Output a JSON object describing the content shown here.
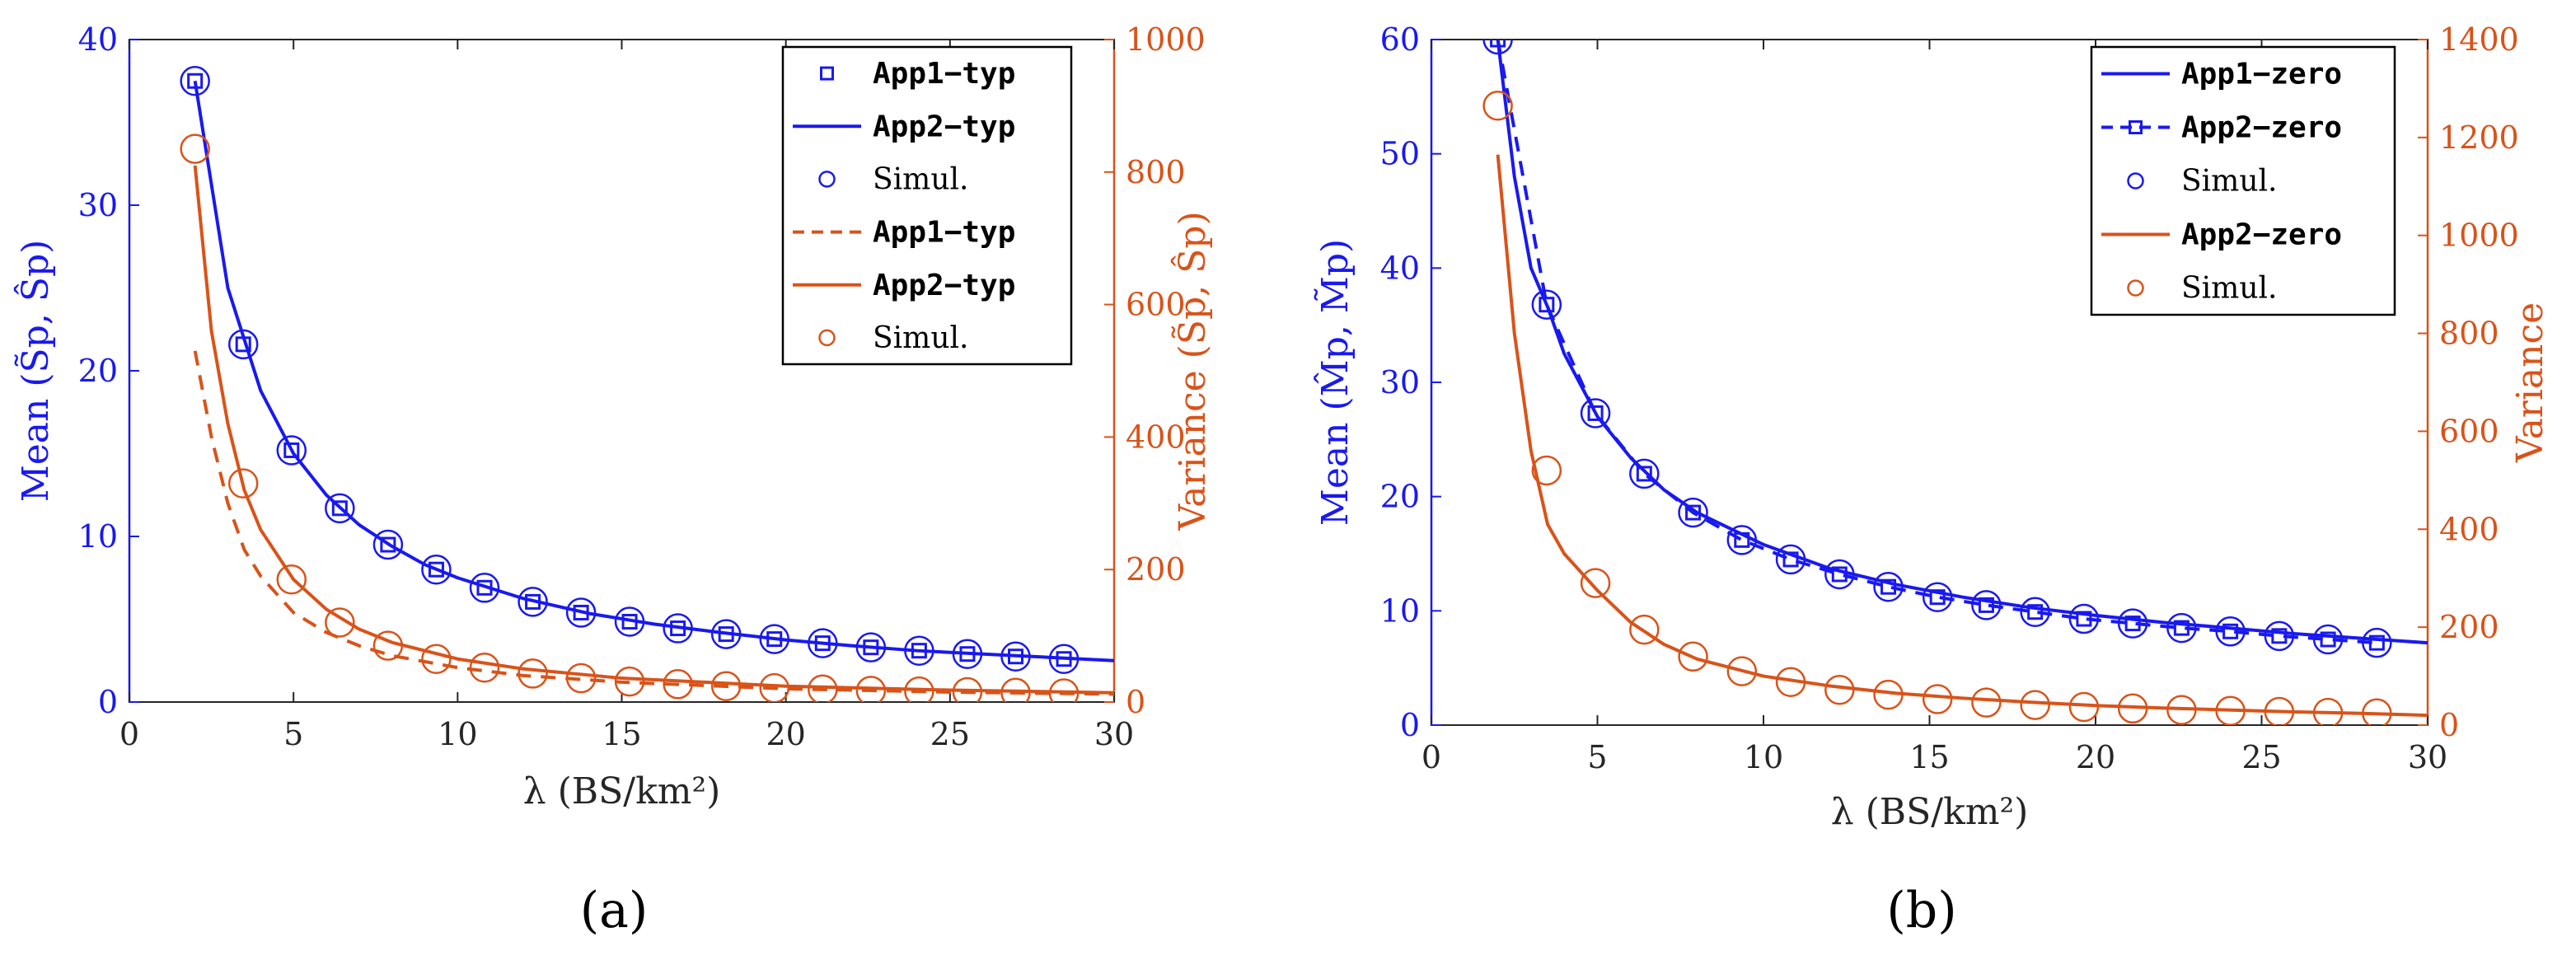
{
  "colors": {
    "blue": "#1919f0",
    "orange": "#d95319",
    "axis": "#262626"
  },
  "chart_data": [
    {
      "type": "line",
      "panel_label": "(a)",
      "xlabel": "λ (BS/km²)",
      "ylabel_left": "Mean (S̃p, Ŝp)",
      "ylabel_right": "Variance (S̃p, Ŝp)",
      "xlim": [
        0,
        30
      ],
      "ylim_left": [
        0,
        40
      ],
      "ylim_right": [
        0,
        1000
      ],
      "xticks": [
        "0",
        "5",
        "10",
        "15",
        "20",
        "25",
        "30"
      ],
      "yticks_left": [
        "0",
        "10",
        "20",
        "30",
        "40"
      ],
      "yticks_right": [
        "0",
        "200",
        "400",
        "600",
        "800",
        "1000"
      ],
      "legend": [
        {
          "label": "App1−typ",
          "kind": "square",
          "color": "blue"
        },
        {
          "label": "App2−typ",
          "kind": "solid",
          "color": "blue"
        },
        {
          "label": "Simul.",
          "kind": "circle",
          "color": "blue"
        },
        {
          "label": "App1−typ",
          "kind": "dashed",
          "color": "orange"
        },
        {
          "label": "App2−typ",
          "kind": "solid",
          "color": "orange"
        },
        {
          "label": "Simul.",
          "kind": "circle",
          "color": "orange"
        }
      ],
      "series": [
        {
          "name": "App1−typ (mean)",
          "axis": "left",
          "color": "blue",
          "style": "square",
          "x": [
            2.0,
            3.47,
            4.94,
            6.41,
            7.88,
            9.35,
            10.82,
            12.29,
            13.76,
            15.24,
            16.71,
            18.18,
            19.65,
            21.12,
            22.59,
            24.06,
            25.53,
            27.0,
            28.47
          ],
          "y": [
            37.5,
            21.6,
            15.2,
            11.7,
            9.5,
            8.0,
            6.9,
            6.05,
            5.4,
            4.85,
            4.45,
            4.1,
            3.8,
            3.55,
            3.3,
            3.1,
            2.9,
            2.75,
            2.6
          ]
        },
        {
          "name": "App2−typ (mean)",
          "axis": "left",
          "color": "blue",
          "style": "solid",
          "x": [
            2,
            3,
            4,
            5,
            6,
            7,
            8,
            9,
            10,
            12,
            14,
            16,
            18,
            20,
            22,
            24,
            26,
            28,
            30
          ],
          "y": [
            37.5,
            25.0,
            18.8,
            15.0,
            12.5,
            10.7,
            9.4,
            8.3,
            7.5,
            6.25,
            5.35,
            4.7,
            4.2,
            3.75,
            3.4,
            3.1,
            2.9,
            2.7,
            2.5
          ]
        },
        {
          "name": "Simul. (mean)",
          "axis": "left",
          "color": "blue",
          "style": "circle",
          "x": [
            2.0,
            3.47,
            4.94,
            6.41,
            7.88,
            9.35,
            10.82,
            12.29,
            13.76,
            15.24,
            16.71,
            18.18,
            19.65,
            21.12,
            22.59,
            24.06,
            25.53,
            27.0,
            28.47
          ],
          "y": [
            37.5,
            21.6,
            15.2,
            11.7,
            9.5,
            8.0,
            6.9,
            6.05,
            5.4,
            4.85,
            4.45,
            4.1,
            3.8,
            3.55,
            3.3,
            3.1,
            2.9,
            2.75,
            2.6
          ]
        },
        {
          "name": "App1−typ (variance)",
          "axis": "right",
          "color": "orange",
          "style": "dashed",
          "x": [
            2,
            2.5,
            3,
            3.5,
            4,
            5,
            6,
            7,
            8,
            10,
            12,
            15,
            20,
            25,
            30
          ],
          "y": [
            530,
            400,
            300,
            230,
            190,
            135,
            105,
            85,
            70,
            52,
            40,
            30,
            20,
            15,
            12
          ]
        },
        {
          "name": "App2−typ (variance)",
          "axis": "right",
          "color": "orange",
          "style": "solid",
          "x": [
            2,
            2.5,
            3,
            3.5,
            4,
            5,
            6,
            7,
            8,
            10,
            12,
            15,
            20,
            25,
            30
          ],
          "y": [
            810,
            560,
            420,
            320,
            260,
            185,
            140,
            110,
            90,
            65,
            50,
            36,
            24,
            18,
            14
          ]
        },
        {
          "name": "Simul. (variance)",
          "axis": "right",
          "color": "orange",
          "style": "circle",
          "x": [
            2.0,
            3.47,
            4.94,
            6.41,
            7.88,
            9.35,
            10.82,
            12.29,
            13.76,
            15.24,
            16.71,
            18.18,
            19.65,
            21.12,
            22.59,
            24.06,
            25.53,
            27.0,
            28.47
          ],
          "y": [
            835,
            330,
            185,
            120,
            85,
            65,
            52,
            43,
            36,
            31,
            27,
            24,
            21,
            19,
            17,
            16,
            15,
            14,
            13
          ]
        }
      ]
    },
    {
      "type": "line",
      "panel_label": "(b)",
      "xlabel": "λ (BS/km²)",
      "ylabel_left": "Mean (M̂p, M̃p)",
      "ylabel_right": "Variance",
      "xlim": [
        0,
        30
      ],
      "ylim_left": [
        0,
        60
      ],
      "ylim_right": [
        0,
        1400
      ],
      "xticks": [
        "0",
        "5",
        "10",
        "15",
        "20",
        "25",
        "30"
      ],
      "yticks_left": [
        "0",
        "10",
        "20",
        "30",
        "40",
        "50",
        "60"
      ],
      "yticks_right": [
        "0",
        "200",
        "400",
        "600",
        "800",
        "1000",
        "1200",
        "1400"
      ],
      "legend": [
        {
          "label": "App1−zero",
          "kind": "solid",
          "color": "blue"
        },
        {
          "label": "App2−zero",
          "kind": "dashed-square",
          "color": "blue"
        },
        {
          "label": "Simul.",
          "kind": "circle",
          "color": "blue"
        },
        {
          "label": "App2−zero",
          "kind": "solid",
          "color": "orange"
        },
        {
          "label": "Simul.",
          "kind": "circle",
          "color": "orange"
        }
      ],
      "series": [
        {
          "name": "App1−zero (mean)",
          "axis": "left",
          "color": "blue",
          "style": "solid",
          "x": [
            2,
            2.5,
            3,
            3.5,
            4,
            5,
            6,
            7,
            8,
            10,
            12,
            14,
            16,
            18,
            20,
            22,
            24,
            26,
            28,
            30
          ],
          "y": [
            60,
            48,
            40,
            36.6,
            32.5,
            27.0,
            23.4,
            20.6,
            18.6,
            15.8,
            13.7,
            12.3,
            11.2,
            10.3,
            9.6,
            9.0,
            8.5,
            8.0,
            7.6,
            7.2
          ]
        },
        {
          "name": "App2−zero (mean)",
          "axis": "left",
          "color": "blue",
          "style": "dashed-square",
          "x": [
            2.0,
            3.47,
            4.94,
            6.41,
            7.88,
            9.35,
            10.82,
            12.29,
            13.76,
            15.24,
            16.71,
            18.18,
            19.65,
            21.12,
            22.59,
            24.06,
            25.53,
            27.0,
            28.47
          ],
          "y": [
            60,
            36.8,
            27.3,
            22.0,
            18.6,
            16.2,
            14.5,
            13.2,
            12.1,
            11.2,
            10.5,
            9.9,
            9.3,
            8.9,
            8.5,
            8.2,
            7.8,
            7.5,
            7.2
          ]
        },
        {
          "name": "Simul. (mean)",
          "axis": "left",
          "color": "blue",
          "style": "circle",
          "x": [
            2.0,
            3.47,
            4.94,
            6.41,
            7.88,
            9.35,
            10.82,
            12.29,
            13.76,
            15.24,
            16.71,
            18.18,
            19.65,
            21.12,
            22.59,
            24.06,
            25.53,
            27.0,
            28.47
          ],
          "y": [
            60,
            36.8,
            27.3,
            22.0,
            18.6,
            16.2,
            14.5,
            13.2,
            12.1,
            11.2,
            10.5,
            9.9,
            9.3,
            8.9,
            8.5,
            8.2,
            7.8,
            7.5,
            7.2
          ]
        },
        {
          "name": "App2−zero (variance)",
          "axis": "right",
          "color": "orange",
          "style": "solid",
          "x": [
            2,
            2.5,
            3,
            3.5,
            4,
            5,
            6,
            7,
            8,
            10,
            12,
            14,
            16,
            18,
            20,
            22,
            24,
            26,
            28,
            30
          ],
          "y": [
            1165,
            800,
            560,
            410,
            350,
            275,
            210,
            165,
            135,
            100,
            80,
            65,
            55,
            47,
            40,
            35,
            31,
            27,
            24,
            20
          ]
        },
        {
          "name": "Simul. (variance)",
          "axis": "right",
          "color": "orange",
          "style": "circle",
          "x": [
            2.0,
            3.47,
            4.94,
            6.41,
            7.88,
            9.35,
            10.82,
            12.29,
            13.76,
            15.24,
            16.71,
            18.18,
            19.65,
            21.12,
            22.59,
            24.06,
            25.53,
            27.0,
            28.47
          ],
          "y": [
            1265,
            520,
            290,
            195,
            140,
            110,
            88,
            72,
            62,
            53,
            46,
            41,
            37,
            34,
            31,
            29,
            27,
            25,
            24
          ]
        }
      ]
    }
  ]
}
